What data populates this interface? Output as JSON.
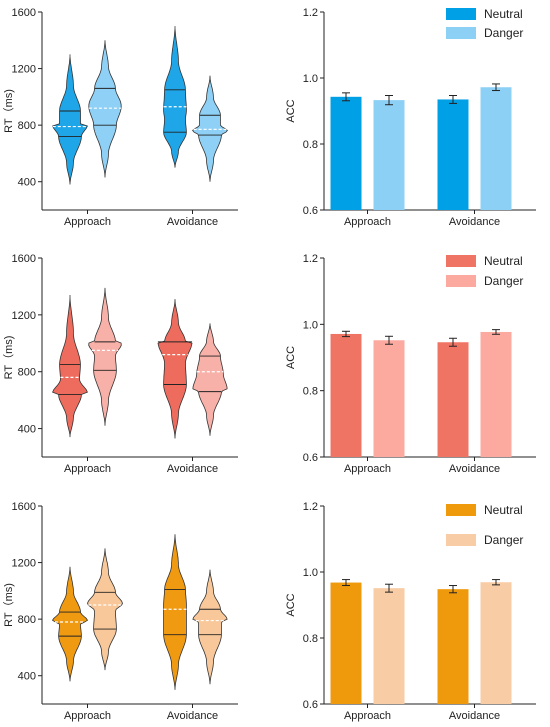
{
  "chart_data": [
    {
      "type": "violin",
      "panel": "row-1-violin",
      "fill_colors": [
        "#1fa6e8",
        "#8fd1f6"
      ],
      "categories": [
        "Approach",
        "Avoidance"
      ],
      "ylabel": "RT（ms)",
      "ylim": [
        200,
        1600
      ],
      "yticks": [
        "400",
        "800",
        "1200",
        "1600"
      ],
      "series": [
        {
          "values_summary": [
            {
              "min": 380,
              "max": 1300,
              "median": 790,
              "q1": 720,
              "q3": 900,
              "peak": 800,
              "peak_width": 0.92,
              "mid_width": 0.55
            },
            {
              "min": 500,
              "max": 1500,
              "median": 930,
              "q1": 750,
              "q3": 1050,
              "peak": 840,
              "peak_width": 0.55,
              "mid_width": 0.6
            }
          ]
        },
        {
          "values_summary": [
            {
              "min": 430,
              "max": 1400,
              "median": 920,
              "q1": 800,
              "q3": 1060,
              "peak": 940,
              "peak_width": 0.85,
              "mid_width": 0.85
            },
            {
              "min": 400,
              "max": 1150,
              "median": 770,
              "q1": 730,
              "q3": 870,
              "peak": 760,
              "peak_width": 0.92,
              "mid_width": 0.55
            }
          ]
        }
      ]
    },
    {
      "type": "bar",
      "panel": "row-1-bar",
      "categories": [
        "Approach",
        "Avoidance"
      ],
      "ylabel": "ACC",
      "ylim": [
        0.6,
        1.2
      ],
      "yticks": [
        "0.6",
        "0.8",
        "1.0",
        "1.2"
      ],
      "legend_position": "top-right",
      "series": [
        {
          "name": "Neutral",
          "color": "#00a0e6",
          "values": [
            0.943,
            0.935
          ],
          "errors": [
            0.012,
            0.012
          ]
        },
        {
          "name": "Danger",
          "color": "#8dd0f5",
          "values": [
            0.933,
            0.972
          ],
          "errors": [
            0.014,
            0.01
          ]
        }
      ]
    },
    {
      "type": "violin",
      "panel": "row-2-violin",
      "fill_colors": [
        "#ee6c5e",
        "#f8b1a8"
      ],
      "categories": [
        "Approach",
        "Avoidance"
      ],
      "ylabel": "RT（ms)",
      "ylim": [
        200,
        1600
      ],
      "yticks": [
        "400",
        "800",
        "1200",
        "1600"
      ],
      "series": [
        {
          "values_summary": [
            {
              "min": 340,
              "max": 1340,
              "median": 760,
              "q1": 640,
              "q3": 850,
              "peak": 650,
              "peak_width": 0.92,
              "mid_width": 0.5
            },
            {
              "min": 330,
              "max": 1310,
              "median": 920,
              "q1": 710,
              "q3": 1010,
              "peak": 1010,
              "peak_width": 0.9,
              "mid_width": 0.55
            }
          ]
        },
        {
          "values_summary": [
            {
              "min": 420,
              "max": 1390,
              "median": 950,
              "q1": 810,
              "q3": 1010,
              "peak": 1000,
              "peak_width": 0.88,
              "mid_width": 0.55
            },
            {
              "min": 350,
              "max": 1140,
              "median": 800,
              "q1": 660,
              "q3": 910,
              "peak": 680,
              "peak_width": 0.9,
              "mid_width": 0.7
            }
          ]
        }
      ]
    },
    {
      "type": "bar",
      "panel": "row-2-bar",
      "categories": [
        "Approach",
        "Avoidance"
      ],
      "ylabel": "ACC",
      "ylim": [
        0.6,
        1.2
      ],
      "yticks": [
        "0.6",
        "0.8",
        "1.0",
        "1.2"
      ],
      "legend_position": "top-right",
      "series": [
        {
          "name": "Neutral",
          "color": "#f07464",
          "values": [
            0.971,
            0.946
          ],
          "errors": [
            0.008,
            0.012
          ]
        },
        {
          "name": "Danger",
          "color": "#fcaaa0",
          "values": [
            0.952,
            0.977
          ],
          "errors": [
            0.012,
            0.007
          ]
        }
      ]
    },
    {
      "type": "violin",
      "panel": "row-3-violin",
      "fill_colors": [
        "#f09a12",
        "#f8c89a"
      ],
      "categories": [
        "Approach",
        "Avoidance"
      ],
      "ylabel": "RT（ms)",
      "ylim": [
        200,
        1600
      ],
      "yticks": [
        "400",
        "800",
        "1200",
        "1600"
      ],
      "series": [
        {
          "values_summary": [
            {
              "min": 360,
              "max": 1170,
              "median": 780,
              "q1": 680,
              "q3": 850,
              "peak": 790,
              "peak_width": 0.92,
              "mid_width": 0.55
            },
            {
              "min": 300,
              "max": 1400,
              "median": 870,
              "q1": 690,
              "q3": 1010,
              "peak": 900,
              "peak_width": 0.6,
              "mid_width": 0.6
            }
          ]
        },
        {
          "values_summary": [
            {
              "min": 440,
              "max": 1300,
              "median": 900,
              "q1": 730,
              "q3": 990,
              "peak": 910,
              "peak_width": 0.92,
              "mid_width": 0.55
            },
            {
              "min": 340,
              "max": 1150,
              "median": 790,
              "q1": 690,
              "q3": 870,
              "peak": 800,
              "peak_width": 0.9,
              "mid_width": 0.6
            }
          ]
        }
      ]
    },
    {
      "type": "bar",
      "panel": "row-3-bar",
      "categories": [
        "Approach",
        "Avoidance"
      ],
      "ylabel": "ACC",
      "ylim": [
        0.6,
        1.2
      ],
      "yticks": [
        "0.6",
        "0.8",
        "1.0",
        "1.2"
      ],
      "legend_position": "top-right",
      "series": [
        {
          "name": "Neutral",
          "color": "#ef9a0c",
          "values": [
            0.968,
            0.948
          ],
          "errors": [
            0.009,
            0.011
          ]
        },
        {
          "name": "Danger",
          "color": "#f8cca4",
          "values": [
            0.951,
            0.969
          ],
          "errors": [
            0.012,
            0.008
          ]
        }
      ]
    }
  ]
}
